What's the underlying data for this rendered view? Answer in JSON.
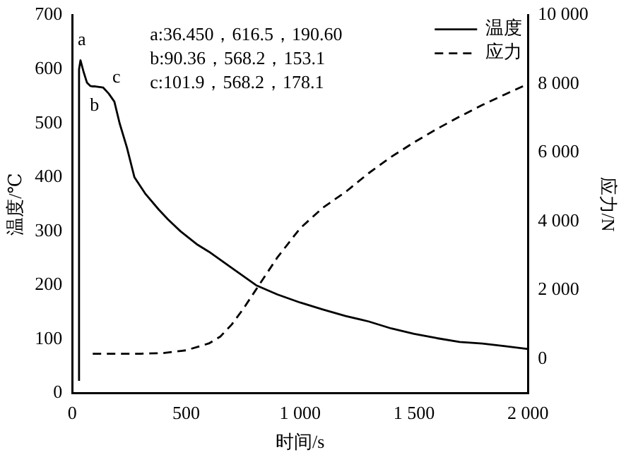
{
  "chart_data": {
    "type": "line",
    "xlabel": "时间/s",
    "ylabel": "温度/℃",
    "y2label": "应力/N",
    "xlim": [
      0,
      2000
    ],
    "xticks": [
      0,
      500,
      {
        "value": 1000,
        "label": "1 000"
      },
      {
        "value": 1500,
        "label": "1 500"
      },
      {
        "value": 2000,
        "label": "2 000"
      }
    ],
    "ylim": [
      0,
      700
    ],
    "yticks": [
      0,
      100,
      200,
      300,
      400,
      500,
      600,
      700
    ],
    "y2lim": [
      -1000,
      10000
    ],
    "y2ticks": [
      0,
      {
        "value": 2000,
        "label": "2 000"
      },
      {
        "value": 4000,
        "label": "4 000"
      },
      {
        "value": 6000,
        "label": "6 000"
      },
      {
        "value": 8000,
        "label": "8 000"
      },
      {
        "value": 10000,
        "label": "10 000"
      }
    ],
    "grid": false,
    "legend": "top right",
    "marker": "none",
    "series": [
      {
        "name": "温度",
        "color": "#000000",
        "line_style": "solid",
        "x": [
          30,
          30,
          36.45,
          50,
          65,
          80,
          90.36,
          101.9,
          136,
          160,
          185,
          208,
          240,
          273,
          320,
          380,
          420,
          475,
          550,
          600,
          700,
          807,
          900,
          1000,
          1100,
          1200,
          1300,
          1400,
          1500,
          1600,
          1700,
          1800,
          1900,
          2000
        ],
        "values": [
          23,
          600,
          616.5,
          595,
          575,
          569,
          568.2,
          568.2,
          566,
          555,
          540,
          500,
          455,
          400,
          370,
          340,
          322,
          300,
          275,
          262,
          232,
          200,
          183,
          168,
          155,
          143,
          133,
          120,
          110,
          102,
          95,
          92,
          87,
          82
        ]
      },
      {
        "name": "应力",
        "color": "#000000",
        "line_style": "dashed",
        "axis": "y2",
        "x": [
          90,
          200,
          300,
          400,
          500,
          600,
          650,
          700,
          750,
          800,
          850,
          900,
          1000,
          1100,
          1200,
          1300,
          1400,
          1500,
          1600,
          1700,
          1800,
          1900,
          2000
        ],
        "values": [
          150,
          150,
          150,
          170,
          250,
          450,
          650,
          1000,
          1450,
          1950,
          2450,
          2950,
          3800,
          4400,
          4860,
          5400,
          5880,
          6300,
          6690,
          7050,
          7390,
          7700,
          8000
        ]
      }
    ],
    "annotations": [
      "a:36.450，616.5，190.60",
      "b:90.36，568.2，153.1",
      "c:101.9，568.2，178.1",
      {
        "text": "a",
        "x": 36.45,
        "y": 616.5
      },
      {
        "text": "b",
        "x": 90.36,
        "y": 568.2
      },
      {
        "text": "c",
        "x": 101.9,
        "y": 568.2
      }
    ]
  }
}
